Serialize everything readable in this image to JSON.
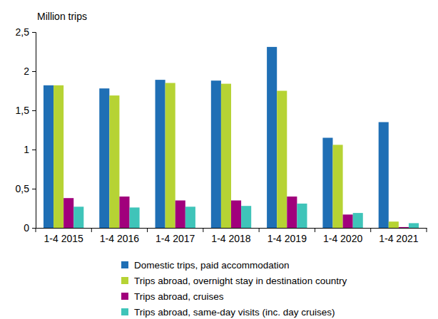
{
  "chart_data": {
    "type": "bar",
    "y_label": "Million trips",
    "categories": [
      "1-4 2015",
      "1-4 2016",
      "1-4 2017",
      "1-4 2018",
      "1-4 2019",
      "1-4 2020",
      "1-4 2021"
    ],
    "series": [
      {
        "name": "Domestic trips, paid accommodation",
        "color": "#1f6fb5",
        "values": [
          1.82,
          1.78,
          1.89,
          1.88,
          2.31,
          1.15,
          1.35
        ]
      },
      {
        "name": "Trips abroad, overnight stay in destination country",
        "color": "#b6d334",
        "values": [
          1.82,
          1.69,
          1.85,
          1.84,
          1.75,
          1.06,
          0.08
        ]
      },
      {
        "name": "Trips abroad, cruises",
        "color": "#a1007c",
        "values": [
          0.38,
          0.4,
          0.35,
          0.35,
          0.4,
          0.17,
          0.01
        ]
      },
      {
        "name": "Trips abroad, same-day visits (inc. day cruises)",
        "color": "#3fc4b9",
        "values": [
          0.27,
          0.26,
          0.27,
          0.28,
          0.31,
          0.19,
          0.06
        ]
      }
    ],
    "ylim": [
      0,
      2.5
    ],
    "yticks": [
      0,
      {
        "value": 0.5,
        "label": "0,5"
      },
      1,
      {
        "value": 1.5,
        "label": "1,5"
      },
      2,
      {
        "value": 2.5,
        "label": "2,5"
      }
    ],
    "grid": false,
    "legend": "bottom"
  }
}
